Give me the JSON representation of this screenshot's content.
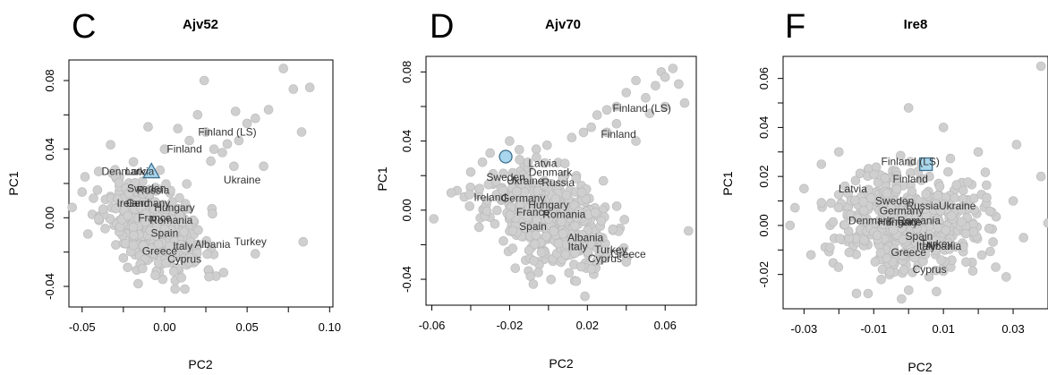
{
  "chart_data": [
    {
      "type": "scatter",
      "panel_letter": "C",
      "title": "Ajv52",
      "xlabel": "PC2",
      "ylabel": "PC1",
      "xlim": [
        -0.058,
        0.102
      ],
      "ylim": [
        -0.052,
        0.092
      ],
      "xticks": [
        -0.05,
        0.0,
        0.05,
        0.1
      ],
      "xtick_labels": [
        "-0.05",
        "0.00",
        "0.05",
        "0.10"
      ],
      "yticks": [
        -0.04,
        0.0,
        0.04,
        0.08
      ],
      "ytick_labels": [
        "-0.04",
        "0.00",
        "0.04",
        "0.08"
      ],
      "cloud": {
        "cx": -0.006,
        "cy": -0.005,
        "sx": 0.015,
        "sy": 0.014,
        "corr": -0.45,
        "n": 430,
        "seed": 11
      },
      "extra_points": [
        [
          0.072,
          0.087
        ],
        [
          0.088,
          0.076
        ],
        [
          0.078,
          0.075
        ],
        [
          0.063,
          0.063
        ],
        [
          0.055,
          0.058
        ],
        [
          0.05,
          0.055
        ],
        [
          0.043,
          0.062
        ],
        [
          0.024,
          0.08
        ],
        [
          0.038,
          0.043
        ],
        [
          0.045,
          0.045
        ],
        [
          0.083,
          0.05
        ],
        [
          0.042,
          0.03
        ],
        [
          0.06,
          0.03
        ],
        [
          0.084,
          -0.014
        ],
        [
          0.055,
          -0.021
        ],
        [
          0.02,
          0.06
        ],
        [
          0.025,
          0.05
        ],
        [
          0.015,
          0.045
        ],
        [
          0.03,
          0.04
        ],
        [
          0.008,
          0.052
        ],
        [
          0.0,
          0.04
        ],
        [
          -0.01,
          0.053
        ],
        [
          -0.03,
          0.028
        ],
        [
          -0.04,
          0.027
        ],
        [
          -0.05,
          0.015
        ],
        [
          -0.056,
          0.006
        ],
        [
          0.035,
          0.038
        ],
        [
          0.028,
          0.033
        ]
      ],
      "labels": [
        {
          "text": "Finland (LS)",
          "x": 0.038,
          "y": 0.05
        },
        {
          "text": "Finland",
          "x": 0.012,
          "y": 0.04
        },
        {
          "text": "Ukraine",
          "x": 0.047,
          "y": 0.022
        },
        {
          "text": "Denmark",
          "x": -0.025,
          "y": 0.027
        },
        {
          "text": "Latvia",
          "x": -0.015,
          "y": 0.027
        },
        {
          "text": "Sweden",
          "x": -0.011,
          "y": 0.017
        },
        {
          "text": "Russia",
          "x": -0.007,
          "y": 0.016
        },
        {
          "text": "Hungary",
          "x": 0.006,
          "y": 0.006
        },
        {
          "text": "Germany",
          "x": -0.01,
          "y": 0.0085
        },
        {
          "text": "Ireland",
          "x": -0.019,
          "y": 0.0085
        },
        {
          "text": "France",
          "x": -0.006,
          "y": 0.0
        },
        {
          "text": "Romania",
          "x": 0.004,
          "y": -0.0015
        },
        {
          "text": "Spain",
          "x": 0.0,
          "y": -0.009
        },
        {
          "text": "Turkey",
          "x": 0.052,
          "y": -0.014
        },
        {
          "text": "Albania",
          "x": 0.029,
          "y": -0.0155
        },
        {
          "text": "Italy",
          "x": 0.011,
          "y": -0.0165
        },
        {
          "text": "Greece",
          "x": -0.003,
          "y": -0.0195
        },
        {
          "text": "Cyprus",
          "x": 0.012,
          "y": -0.024
        }
      ],
      "marker": {
        "shape": "triangle",
        "x": -0.008,
        "y": 0.027
      }
    },
    {
      "type": "scatter",
      "panel_letter": "D",
      "title": "Ajv70",
      "xlabel": "PC2",
      "ylabel": "PC1",
      "xlim": [
        -0.063,
        0.076
      ],
      "ylim": [
        -0.055,
        0.089
      ],
      "xticks": [
        -0.06,
        -0.02,
        0.02,
        0.06
      ],
      "xtick_labels": [
        "-0.06",
        "-0.02",
        "0.02",
        "0.06"
      ],
      "yticks": [
        -0.04,
        0.0,
        0.04,
        0.08
      ],
      "ytick_labels": [
        "-0.04",
        "0.00",
        "0.04",
        "0.08"
      ],
      "cloud": {
        "cx": 0.0,
        "cy": -0.005,
        "sx": 0.016,
        "sy": 0.015,
        "corr": -0.4,
        "n": 460,
        "seed": 23
      },
      "extra_points": [
        [
          0.064,
          0.082
        ],
        [
          0.058,
          0.08
        ],
        [
          0.06,
          0.077
        ],
        [
          0.067,
          0.073
        ],
        [
          0.055,
          0.072
        ],
        [
          0.045,
          0.075
        ],
        [
          0.05,
          0.065
        ],
        [
          0.04,
          0.068
        ],
        [
          0.035,
          0.06
        ],
        [
          0.03,
          0.058
        ],
        [
          0.025,
          0.055
        ],
        [
          0.022,
          0.048
        ],
        [
          0.018,
          0.045
        ],
        [
          0.03,
          0.045
        ],
        [
          0.035,
          0.05
        ],
        [
          0.06,
          0.06
        ],
        [
          0.07,
          0.062
        ],
        [
          0.052,
          0.056
        ],
        [
          -0.02,
          0.04
        ],
        [
          -0.015,
          0.035
        ],
        [
          -0.03,
          0.033
        ],
        [
          -0.04,
          0.022
        ],
        [
          -0.05,
          0.01
        ],
        [
          -0.059,
          -0.005
        ],
        [
          0.072,
          -0.012
        ],
        [
          0.04,
          -0.03
        ],
        [
          0.045,
          0.04
        ],
        [
          0.012,
          0.042
        ]
      ],
      "labels": [
        {
          "text": "Finland (LS)",
          "x": 0.048,
          "y": 0.059
        },
        {
          "text": "Finland",
          "x": 0.036,
          "y": 0.044
        },
        {
          "text": "Latvia",
          "x": -0.003,
          "y": 0.027
        },
        {
          "text": "Denmark",
          "x": 0.001,
          "y": 0.022
        },
        {
          "text": "Sweden",
          "x": -0.022,
          "y": 0.019
        },
        {
          "text": "Ukraine",
          "x": -0.012,
          "y": 0.017
        },
        {
          "text": "Russia",
          "x": 0.005,
          "y": 0.016
        },
        {
          "text": "Ireland",
          "x": -0.03,
          "y": 0.0075
        },
        {
          "text": "Germany",
          "x": -0.013,
          "y": 0.007
        },
        {
          "text": "Hungary",
          "x": 0.0,
          "y": 0.003
        },
        {
          "text": "France",
          "x": -0.008,
          "y": -0.001
        },
        {
          "text": "Romania",
          "x": 0.008,
          "y": -0.0025
        },
        {
          "text": "Spain",
          "x": -0.008,
          "y": -0.0095
        },
        {
          "text": "Albania",
          "x": 0.019,
          "y": -0.016
        },
        {
          "text": "Italy",
          "x": 0.015,
          "y": -0.021
        },
        {
          "text": "Turkey",
          "x": 0.032,
          "y": -0.023
        },
        {
          "text": "Greece",
          "x": 0.041,
          "y": -0.0255
        },
        {
          "text": "Cyprus",
          "x": 0.029,
          "y": -0.028
        }
      ],
      "marker": {
        "shape": "circle",
        "x": -0.022,
        "y": 0.031
      }
    },
    {
      "type": "scatter",
      "panel_letter": "F",
      "title": "Ire8",
      "xlabel": "PC2",
      "ylabel": "PC1",
      "xlim": [
        -0.036,
        0.04
      ],
      "ylim": [
        -0.034,
        0.069
      ],
      "xticks": [
        -0.03,
        -0.01,
        0.01,
        0.03
      ],
      "xtick_labels": [
        "-0.03",
        "-0.01",
        "0.01",
        "0.03"
      ],
      "yticks": [
        -0.02,
        0.0,
        0.02,
        0.04,
        0.06
      ],
      "ytick_labels": [
        "-0.02",
        "0.00",
        "0.02",
        "0.04",
        "0.06"
      ],
      "cloud": {
        "cx": 0.0,
        "cy": 0.003,
        "sx": 0.0105,
        "sy": 0.0105,
        "corr": 0.0,
        "n": 470,
        "seed": 37
      },
      "extra_points": [
        [
          0.038,
          0.065
        ],
        [
          0.031,
          0.033
        ],
        [
          0.038,
          0.02
        ],
        [
          -0.034,
          0.0
        ],
        [
          0.04,
          0.001
        ],
        [
          0.0,
          0.048
        ],
        [
          0.01,
          0.04
        ],
        [
          -0.02,
          0.03
        ],
        [
          0.02,
          0.03
        ],
        [
          -0.028,
          -0.012
        ],
        [
          0.025,
          -0.017
        ],
        [
          0.028,
          -0.021
        ],
        [
          -0.002,
          -0.03
        ],
        [
          0.008,
          -0.027
        ],
        [
          -0.025,
          0.025
        ],
        [
          0.03,
          0.01
        ],
        [
          0.033,
          -0.005
        ],
        [
          -0.03,
          0.015
        ]
      ],
      "labels": [
        {
          "text": "Finland (LS)",
          "x": 0.0005,
          "y": 0.026
        },
        {
          "text": "Finland",
          "x": 0.0005,
          "y": 0.019
        },
        {
          "text": "Latvia",
          "x": -0.016,
          "y": 0.015
        },
        {
          "text": "Sweden",
          "x": -0.004,
          "y": 0.01
        },
        {
          "text": "Germany",
          "x": -0.002,
          "y": 0.006
        },
        {
          "text": "Russia",
          "x": 0.004,
          "y": 0.008
        },
        {
          "text": "Ukraine",
          "x": 0.014,
          "y": 0.008
        },
        {
          "text": "Denmark",
          "x": -0.011,
          "y": 0.002
        },
        {
          "text": "Hungary",
          "x": -0.003,
          "y": 0.0015
        },
        {
          "text": "Romania",
          "x": 0.003,
          "y": 0.002
        },
        {
          "text": "France",
          "x": -0.001,
          "y": 0.0015
        },
        {
          "text": "Spain",
          "x": 0.003,
          "y": -0.0045
        },
        {
          "text": "Italy",
          "x": 0.005,
          "y": -0.0085
        },
        {
          "text": "Turkey",
          "x": 0.008,
          "y": -0.0075
        },
        {
          "text": "Albania",
          "x": 0.01,
          "y": -0.0085
        },
        {
          "text": "Greece",
          "x": 0.0,
          "y": -0.011
        },
        {
          "text": "Cyprus",
          "x": 0.006,
          "y": -0.018
        }
      ],
      "marker": {
        "shape": "square",
        "x": 0.005,
        "y": 0.025
      }
    }
  ]
}
